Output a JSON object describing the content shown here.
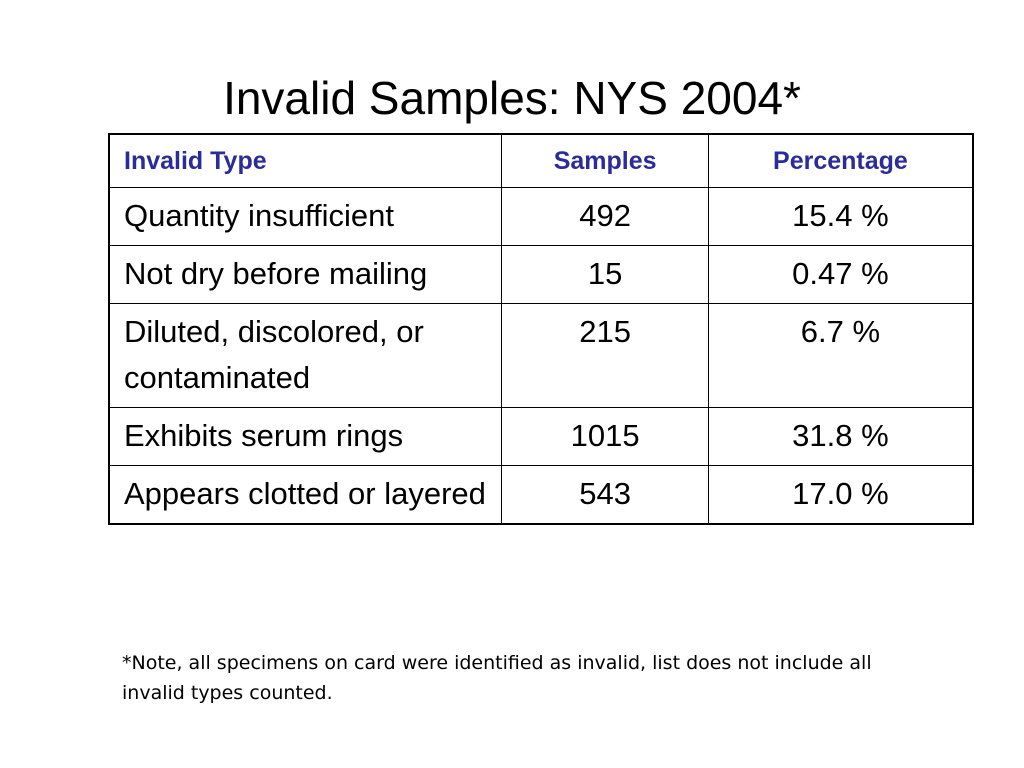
{
  "title": "Invalid Samples: NYS 2004*",
  "table": {
    "headers": {
      "type": "Invalid Type",
      "samples": "Samples",
      "percentage": "Percentage"
    },
    "rows": [
      {
        "type": "Quantity insufficient",
        "samples": "492",
        "percentage": "15.4 %"
      },
      {
        "type": "Not dry before mailing",
        "samples": "15",
        "percentage": "0.47 %"
      },
      {
        "type": "Diluted, discolored, or contaminated",
        "samples": "215",
        "percentage": "6.7 %"
      },
      {
        "type": "Exhibits serum rings",
        "samples": "1015",
        "percentage": "31.8 %"
      },
      {
        "type": "Appears clotted or layered",
        "samples": "543",
        "percentage": "17.0 %"
      }
    ]
  },
  "footnote": "*Note, all specimens on card were identified as invalid, list does not include all invalid types counted.",
  "colors": {
    "header_text": "#2b2b9a",
    "border": "#000000",
    "background": "#ffffff"
  }
}
